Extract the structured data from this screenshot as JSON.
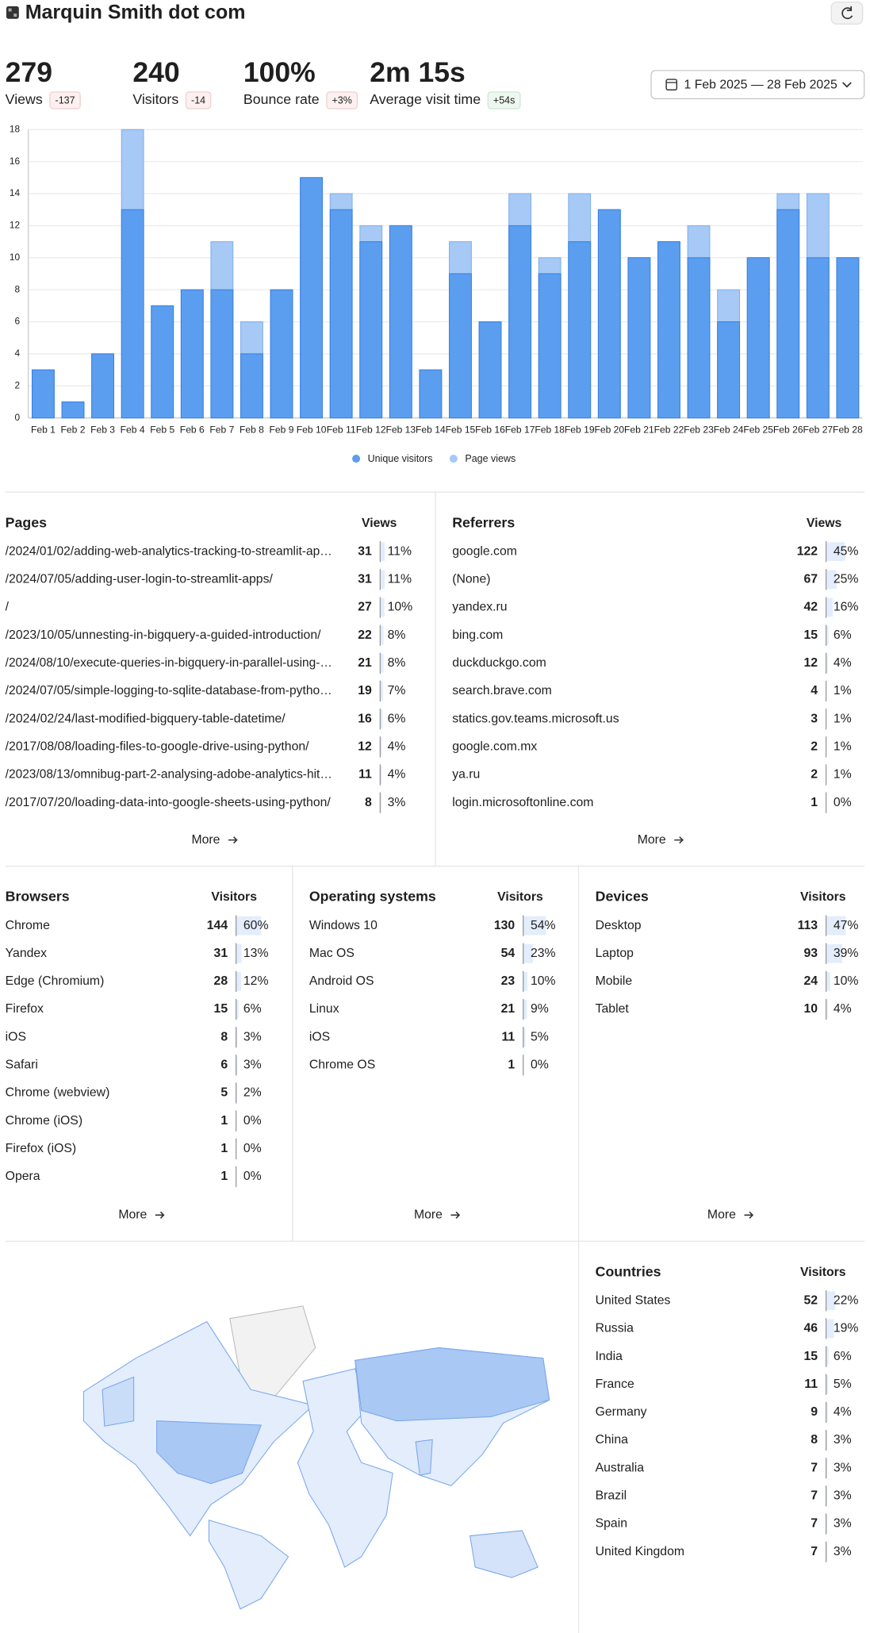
{
  "header": {
    "title": "Marquin Smith dot com"
  },
  "stats": [
    {
      "value": "279",
      "label": "Views",
      "delta": "-137",
      "trend": "down"
    },
    {
      "value": "240",
      "label": "Visitors",
      "delta": "-14",
      "trend": "down"
    },
    {
      "value": "100%",
      "label": "Bounce rate",
      "delta": "+3%",
      "trend": "down"
    },
    {
      "value": "2m 15s",
      "label": "Average visit time",
      "delta": "+54s",
      "trend": "up"
    }
  ],
  "date_range": "1 Feb 2025 — 28 Feb 2025",
  "chart_data": {
    "type": "bar",
    "categories": [
      "Feb 1",
      "Feb 2",
      "Feb 3",
      "Feb 4",
      "Feb 5",
      "Feb 6",
      "Feb 7",
      "Feb 8",
      "Feb 9",
      "Feb 10",
      "Feb 11",
      "Feb 12",
      "Feb 13",
      "Feb 14",
      "Feb 15",
      "Feb 16",
      "Feb 17",
      "Feb 18",
      "Feb 19",
      "Feb 20",
      "Feb 21",
      "Feb 22",
      "Feb 23",
      "Feb 24",
      "Feb 25",
      "Feb 26",
      "Feb 27",
      "Feb 28"
    ],
    "series": [
      {
        "name": "Unique visitors",
        "color": "#5b9ef0",
        "values": [
          3,
          1,
          4,
          13,
          7,
          8,
          8,
          4,
          8,
          15,
          13,
          11,
          12,
          3,
          9,
          6,
          12,
          9,
          11,
          13,
          10,
          11,
          10,
          6,
          10,
          13,
          10,
          10
        ]
      },
      {
        "name": "Page views",
        "color": "#a6c9f5",
        "values": [
          3,
          1,
          4,
          18,
          7,
          8,
          11,
          6,
          8,
          15,
          14,
          12,
          12,
          3,
          11,
          6,
          14,
          10,
          14,
          13,
          10,
          11,
          12,
          8,
          10,
          14,
          14,
          10
        ]
      }
    ],
    "ylim": [
      0,
      18
    ],
    "yticks": [
      0,
      2,
      4,
      6,
      8,
      10,
      12,
      14,
      16,
      18
    ],
    "grid": true,
    "legend": "bottom"
  },
  "pages": {
    "title": "Pages",
    "column": "Views",
    "more": "More",
    "rows": [
      {
        "name": "/2024/01/02/adding-web-analytics-tracking-to-streamlit-ap…",
        "count": 31,
        "share": 11,
        "share_label": "11%"
      },
      {
        "name": "/2024/07/05/adding-user-login-to-streamlit-apps/",
        "count": 31,
        "share": 11,
        "share_label": "11%"
      },
      {
        "name": "/",
        "count": 27,
        "share": 10,
        "share_label": "10%"
      },
      {
        "name": "/2023/10/05/unnesting-in-bigquery-a-guided-introduction/",
        "count": 22,
        "share": 8,
        "share_label": "8%"
      },
      {
        "name": "/2024/08/10/execute-queries-in-bigquery-in-parallel-using-…",
        "count": 21,
        "share": 8,
        "share_label": "8%"
      },
      {
        "name": "/2024/07/05/simple-logging-to-sqlite-database-from-pytho…",
        "count": 19,
        "share": 7,
        "share_label": "7%"
      },
      {
        "name": "/2024/02/24/last-modified-bigquery-table-datetime/",
        "count": 16,
        "share": 6,
        "share_label": "6%"
      },
      {
        "name": "/2017/08/08/loading-files-to-google-drive-using-python/",
        "count": 12,
        "share": 4,
        "share_label": "4%"
      },
      {
        "name": "/2023/08/13/omnibug-part-2-analysing-adobe-analytics-hit…",
        "count": 11,
        "share": 4,
        "share_label": "4%"
      },
      {
        "name": "/2017/07/20/loading-data-into-google-sheets-using-python/",
        "count": 8,
        "share": 3,
        "share_label": "3%"
      }
    ]
  },
  "referrers": {
    "title": "Referrers",
    "column": "Views",
    "more": "More",
    "rows": [
      {
        "name": "google.com",
        "count": 122,
        "share": 45,
        "share_label": "45%"
      },
      {
        "name": "(None)",
        "count": 67,
        "share": 25,
        "share_label": "25%"
      },
      {
        "name": "yandex.ru",
        "count": 42,
        "share": 16,
        "share_label": "16%"
      },
      {
        "name": "bing.com",
        "count": 15,
        "share": 6,
        "share_label": "6%"
      },
      {
        "name": "duckduckgo.com",
        "count": 12,
        "share": 4,
        "share_label": "4%"
      },
      {
        "name": "search.brave.com",
        "count": 4,
        "share": 1,
        "share_label": "1%"
      },
      {
        "name": "statics.gov.teams.microsoft.us",
        "count": 3,
        "share": 1,
        "share_label": "1%"
      },
      {
        "name": "google.com.mx",
        "count": 2,
        "share": 1,
        "share_label": "1%"
      },
      {
        "name": "ya.ru",
        "count": 2,
        "share": 1,
        "share_label": "1%"
      },
      {
        "name": "login.microsoftonline.com",
        "count": 1,
        "share": 0,
        "share_label": "0%"
      }
    ]
  },
  "browsers": {
    "title": "Browsers",
    "column": "Visitors",
    "more": "More",
    "rows": [
      {
        "name": "Chrome",
        "count": 144,
        "share": 60,
        "share_label": "60%"
      },
      {
        "name": "Yandex",
        "count": 31,
        "share": 13,
        "share_label": "13%"
      },
      {
        "name": "Edge (Chromium)",
        "count": 28,
        "share": 12,
        "share_label": "12%"
      },
      {
        "name": "Firefox",
        "count": 15,
        "share": 6,
        "share_label": "6%"
      },
      {
        "name": "iOS",
        "count": 8,
        "share": 3,
        "share_label": "3%"
      },
      {
        "name": "Safari",
        "count": 6,
        "share": 3,
        "share_label": "3%"
      },
      {
        "name": "Chrome (webview)",
        "count": 5,
        "share": 2,
        "share_label": "2%"
      },
      {
        "name": "Chrome (iOS)",
        "count": 1,
        "share": 0,
        "share_label": "0%"
      },
      {
        "name": "Firefox (iOS)",
        "count": 1,
        "share": 0,
        "share_label": "0%"
      },
      {
        "name": "Opera",
        "count": 1,
        "share": 0,
        "share_label": "0%"
      }
    ]
  },
  "operating_systems": {
    "title": "Operating systems",
    "column": "Visitors",
    "more": "More",
    "rows": [
      {
        "name": "Windows 10",
        "count": 130,
        "share": 54,
        "share_label": "54%"
      },
      {
        "name": "Mac OS",
        "count": 54,
        "share": 23,
        "share_label": "23%"
      },
      {
        "name": "Android OS",
        "count": 23,
        "share": 10,
        "share_label": "10%"
      },
      {
        "name": "Linux",
        "count": 21,
        "share": 9,
        "share_label": "9%"
      },
      {
        "name": "iOS",
        "count": 11,
        "share": 5,
        "share_label": "5%"
      },
      {
        "name": "Chrome OS",
        "count": 1,
        "share": 0,
        "share_label": "0%"
      }
    ]
  },
  "devices": {
    "title": "Devices",
    "column": "Visitors",
    "more": "More",
    "rows": [
      {
        "name": "Desktop",
        "count": 113,
        "share": 47,
        "share_label": "47%"
      },
      {
        "name": "Laptop",
        "count": 93,
        "share": 39,
        "share_label": "39%"
      },
      {
        "name": "Mobile",
        "count": 24,
        "share": 10,
        "share_label": "10%"
      },
      {
        "name": "Tablet",
        "count": 10,
        "share": 4,
        "share_label": "4%"
      }
    ]
  },
  "countries": {
    "title": "Countries",
    "column": "Visitors",
    "rows": [
      {
        "name": "United States",
        "count": 52,
        "share": 22,
        "share_label": "22%"
      },
      {
        "name": "Russia",
        "count": 46,
        "share": 19,
        "share_label": "19%"
      },
      {
        "name": "India",
        "count": 15,
        "share": 6,
        "share_label": "6%"
      },
      {
        "name": "France",
        "count": 11,
        "share": 5,
        "share_label": "5%"
      },
      {
        "name": "Germany",
        "count": 9,
        "share": 4,
        "share_label": "4%"
      },
      {
        "name": "China",
        "count": 8,
        "share": 3,
        "share_label": "3%"
      },
      {
        "name": "Australia",
        "count": 7,
        "share": 3,
        "share_label": "3%"
      },
      {
        "name": "Brazil",
        "count": 7,
        "share": 3,
        "share_label": "3%"
      },
      {
        "name": "Spain",
        "count": 7,
        "share": 3,
        "share_label": "3%"
      },
      {
        "name": "United Kingdom",
        "count": 7,
        "share": 3,
        "share_label": "3%"
      }
    ]
  }
}
